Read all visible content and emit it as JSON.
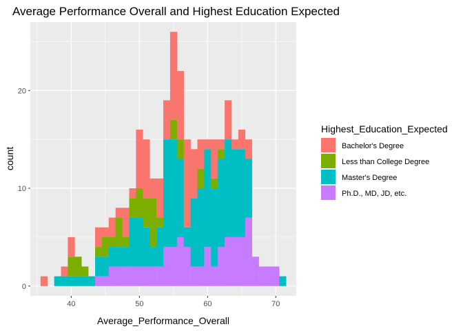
{
  "chart_data": {
    "type": "bar",
    "subtype": "stacked-histogram",
    "title": "Average Performance Overall and Highest Education Expected",
    "xlabel": "Average_Performance_Overall",
    "ylabel": "count",
    "xlim": [
      34.0,
      73.0
    ],
    "ylim": [
      -1.0,
      27.0
    ],
    "xticks": [
      40,
      50,
      60,
      70
    ],
    "yticks": [
      0,
      10,
      20
    ],
    "bin_width": 1.0,
    "grid": true,
    "legend_position": "right",
    "legend_title": "Highest_Education_Expected",
    "x": [
      36,
      38,
      39,
      40,
      41,
      42,
      43,
      44,
      45,
      46,
      47,
      48,
      49,
      50,
      51,
      52,
      53,
      54,
      55,
      56,
      57,
      58,
      59,
      60,
      61,
      62,
      63,
      64,
      65,
      66,
      67,
      68,
      69,
      70,
      71
    ],
    "series": [
      {
        "name": "Ph.D., MD, JD, etc.",
        "color": "#C77CFF",
        "values": [
          0,
          0,
          0,
          0,
          0,
          0,
          0,
          1,
          1,
          2,
          2,
          2,
          2,
          2,
          2,
          2,
          2,
          4,
          4,
          5,
          4,
          2,
          2,
          4,
          2,
          4,
          5,
          5,
          5,
          7,
          3,
          2,
          2,
          2,
          0
        ]
      },
      {
        "name": "Master's Degree",
        "color": "#00BFC4",
        "values": [
          0,
          1,
          1,
          1,
          1,
          1,
          1,
          2,
          2,
          2,
          2,
          2,
          5,
          5,
          4,
          2,
          4,
          11,
          11,
          8,
          2,
          7,
          8,
          10,
          8,
          9,
          10,
          9,
          9,
          6,
          0,
          0,
          0,
          0,
          1
        ]
      },
      {
        "name": "Less than College Degree",
        "color": "#7CAE00",
        "values": [
          0,
          0,
          0,
          2,
          2,
          1,
          0,
          1,
          2,
          1,
          3,
          1,
          2,
          3,
          3,
          5,
          1,
          0,
          2,
          2,
          0,
          0,
          2,
          0,
          1,
          1,
          0,
          0,
          0,
          0,
          0,
          0,
          0,
          0,
          0
        ]
      },
      {
        "name": "Bachelor's Degree",
        "color": "#F8766D",
        "values": [
          1,
          0,
          1,
          2,
          0,
          0,
          0,
          2,
          1,
          2,
          1,
          3,
          1,
          6,
          6,
          2,
          4,
          4,
          9,
          7,
          9,
          5,
          3,
          1,
          4,
          1,
          4,
          1,
          2,
          2,
          0,
          0,
          0,
          0,
          0
        ]
      }
    ],
    "legend_order": [
      "Bachelor's Degree",
      "Less than College Degree",
      "Master's Degree",
      "Ph.D., MD, JD, etc."
    ],
    "panel_background": "#EBEBEB",
    "grid_color": "#FFFFFF"
  }
}
